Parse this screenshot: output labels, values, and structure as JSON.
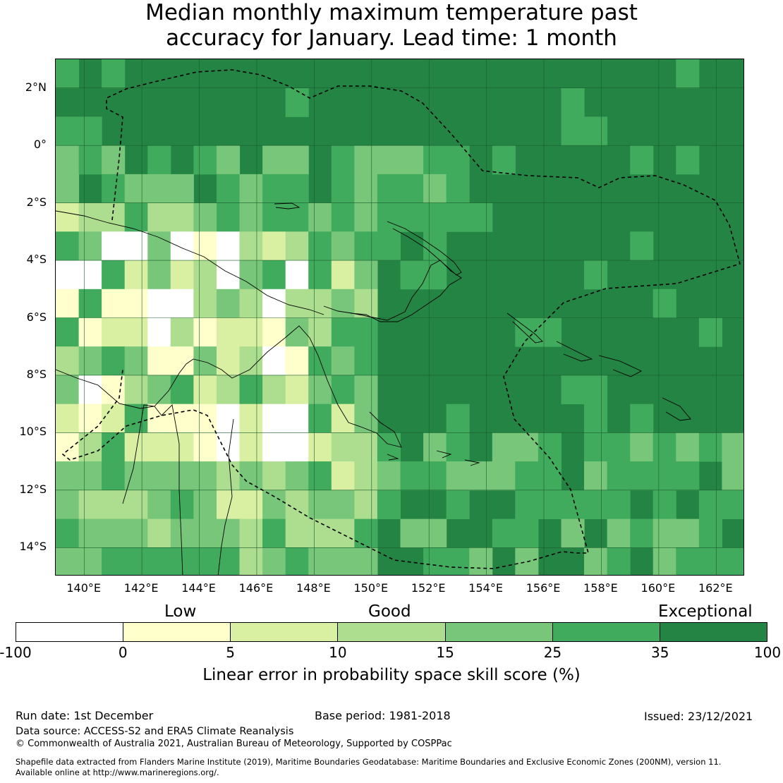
{
  "title": {
    "line1": "Median monthly maximum temperature past",
    "line2": "accuracy for January. Lead time: 1 month"
  },
  "map": {
    "lon_range": [
      139,
      163
    ],
    "lat_range": [
      -15,
      3
    ],
    "lat_labels": [
      "2°N",
      "0°",
      "2°S",
      "4°S",
      "6°S",
      "8°S",
      "10°S",
      "12°S",
      "14°S"
    ],
    "lat_values": [
      2,
      0,
      -2,
      -4,
      -6,
      -8,
      -10,
      -12,
      -14
    ],
    "lon_labels": [
      "140°E",
      "142°E",
      "144°E",
      "146°E",
      "148°E",
      "150°E",
      "152°E",
      "154°E",
      "156°E",
      "158°E",
      "160°E",
      "162°E"
    ],
    "lon_values": [
      140,
      142,
      144,
      146,
      148,
      150,
      152,
      154,
      156,
      158,
      160,
      162
    ]
  },
  "legend": {
    "categories": {
      "low": "Low",
      "good": "Good",
      "exceptional": "Exceptional"
    },
    "ticks": [
      "-100",
      "0",
      "5",
      "10",
      "15",
      "25",
      "35",
      "100"
    ],
    "colors": [
      "#ffffff",
      "#ffffcc",
      "#d9f0a3",
      "#addd8e",
      "#78c679",
      "#41ab5d",
      "#238443"
    ],
    "label": "Linear error in probability space skill score (%)"
  },
  "footer": {
    "run_date": "Run date: 1st December",
    "base_period": "Base period: 1981-2018",
    "issued": "Issued: 23/12/2021",
    "data_source": "Data source: ACCESS-S2 and ERA5 Climate Reanalysis",
    "copyright": "© Commonwealth of Australia 2021, Australian Bureau of Meteorology, Supported by COSPPac",
    "shapefile1": "Shapefile data extracted from Flanders Marine Institute (2019), Maritime Boundaries Geodatabase: Maritime Boundaries and Exclusive Economic Zones (200NM), version 11.",
    "shapefile2": "Available online at http://www.marineregions.org/."
  }
}
